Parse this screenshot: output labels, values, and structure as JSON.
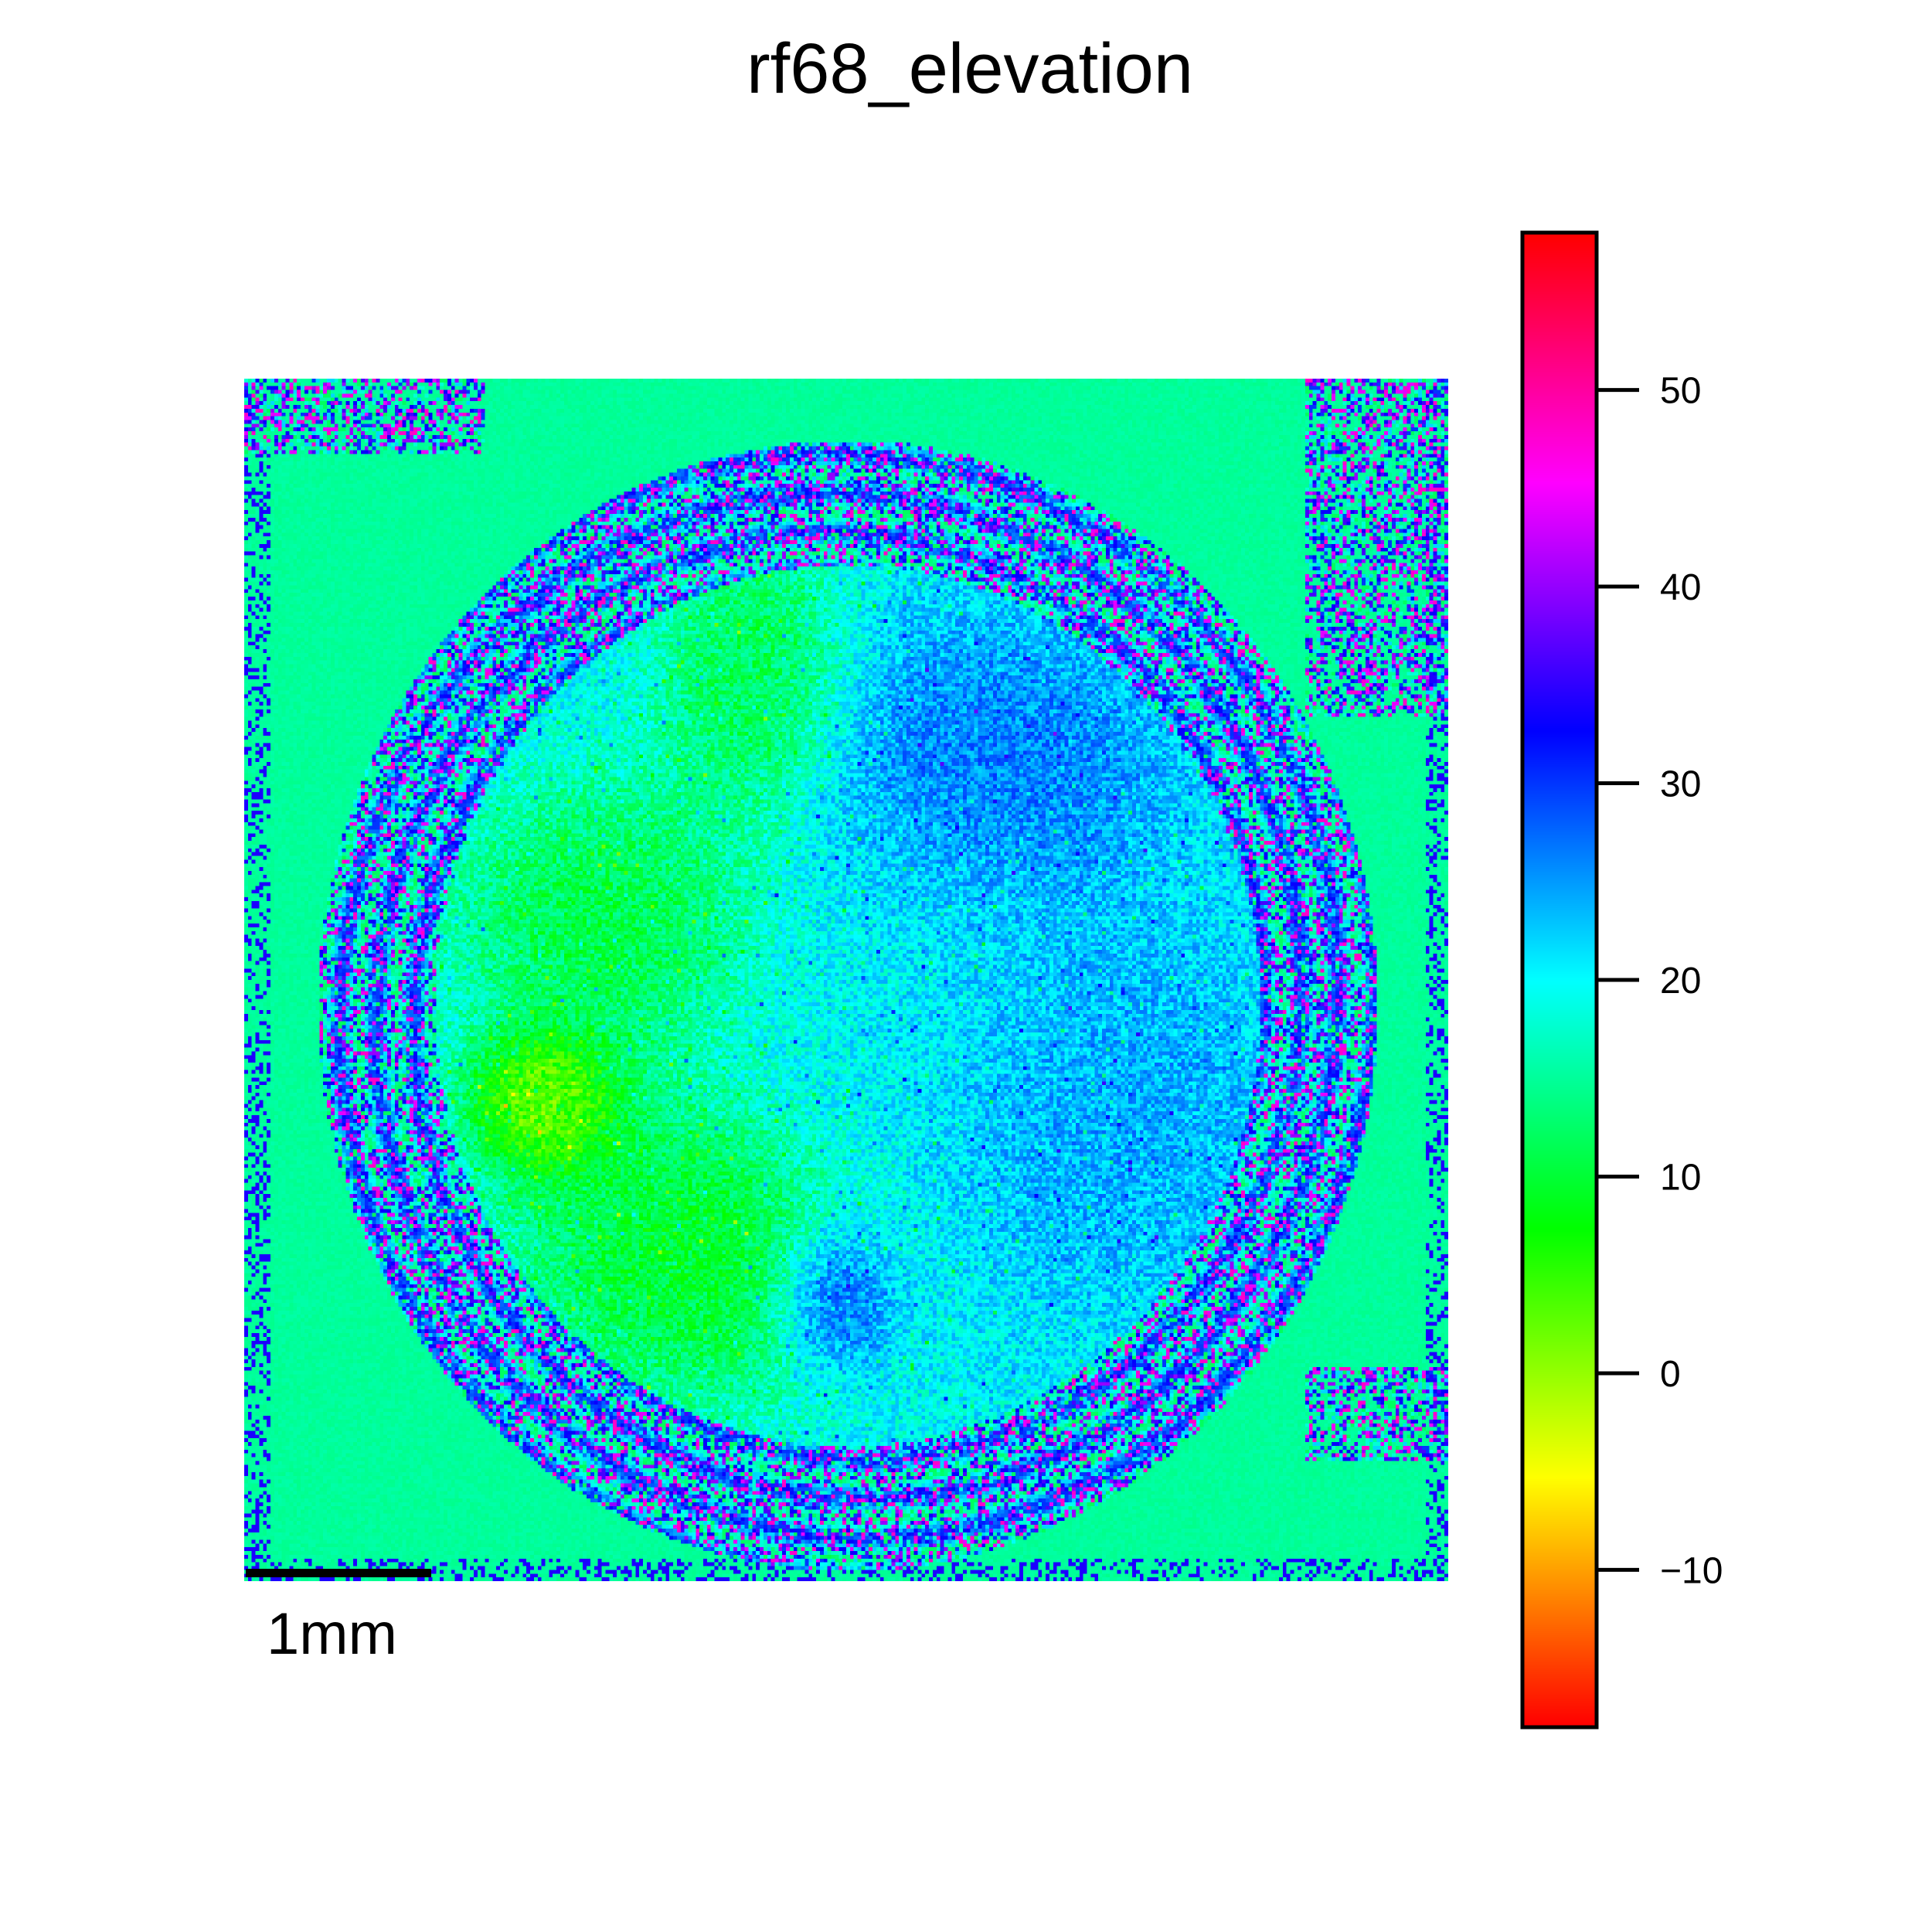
{
  "chart_data": {
    "type": "heatmap",
    "title": "rf68_elevation",
    "colormap": "hsv",
    "colorbar": {
      "vmin": -18,
      "vmax": 58,
      "ticks": [
        -10,
        0,
        10,
        20,
        30,
        40,
        50
      ],
      "tick_labels": [
        "−10",
        "0",
        "10",
        "20",
        "30",
        "40",
        "50"
      ],
      "placement": "right"
    },
    "scale_bar": {
      "label": "1mm"
    },
    "background_value": 15,
    "features": [
      {
        "kind": "region",
        "value": 8,
        "cx": 0.3,
        "cy": 0.45,
        "rx": 0.1,
        "ry": 0.09
      },
      {
        "kind": "region",
        "value": -4,
        "cx": 0.25,
        "cy": 0.6,
        "rx": 0.05,
        "ry": 0.05
      },
      {
        "kind": "region",
        "value": 6,
        "cx": 0.37,
        "cy": 0.72,
        "rx": 0.11,
        "ry": 0.1
      },
      {
        "kind": "region",
        "value": 9,
        "cx": 0.42,
        "cy": 0.25,
        "rx": 0.06,
        "ry": 0.1
      },
      {
        "kind": "region",
        "value": 29,
        "cx": 0.62,
        "cy": 0.33,
        "rx": 0.11,
        "ry": 0.1
      },
      {
        "kind": "region",
        "value": 26,
        "cx": 0.7,
        "cy": 0.6,
        "rx": 0.12,
        "ry": 0.13
      },
      {
        "kind": "region",
        "value": 20,
        "cx": 0.55,
        "cy": 0.53,
        "rx": 0.12,
        "ry": 0.15
      },
      {
        "kind": "region",
        "value": 33,
        "cx": 0.49,
        "cy": 0.76,
        "rx": 0.04,
        "ry": 0.05
      }
    ]
  }
}
